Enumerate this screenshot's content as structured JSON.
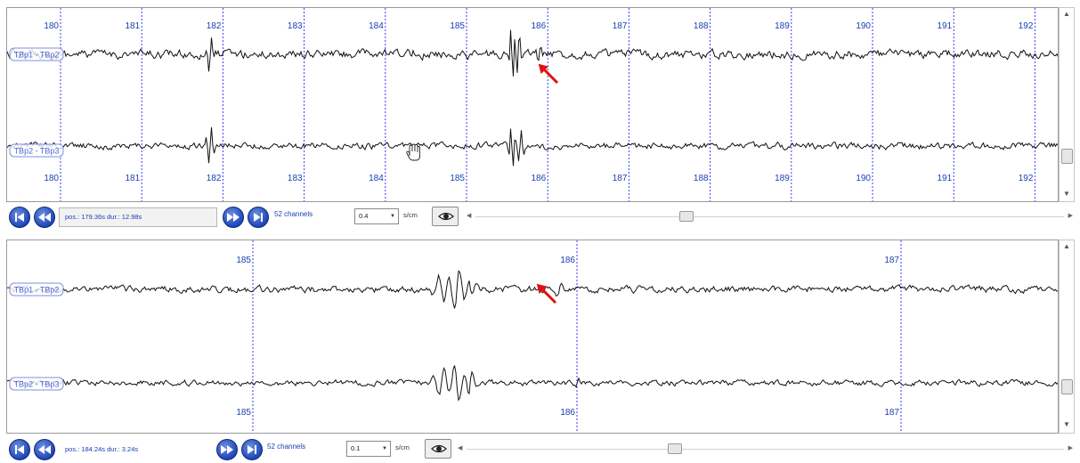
{
  "top_panel": {
    "ticks_top": [
      "180",
      "181",
      "182",
      "183",
      "184",
      "185",
      "186",
      "187",
      "188",
      "189",
      "190",
      "191",
      "192"
    ],
    "ticks_bottom": [
      "180",
      "181",
      "182",
      "183",
      "184",
      "185",
      "186",
      "187",
      "188",
      "189",
      "190",
      "191",
      "192"
    ],
    "channels": [
      "TBp1 - TBp2",
      "TBp2 - TBp3"
    ]
  },
  "top_toolbar": {
    "pos_text": "pos.: 179.36s dur.: 12.98s",
    "channels_label": "52 channels",
    "scale_value": "0.4",
    "scale_unit": "s/cm",
    "scrollbar_position": 0.355
  },
  "bottom_panel": {
    "ticks_top": [
      "185",
      "186",
      "187"
    ],
    "ticks_bottom": [
      "185",
      "186",
      "187"
    ],
    "channels": [
      "TBp1 - TBp2",
      "TBp2 - TBp3"
    ]
  },
  "bottom_toolbar": {
    "pos_text": "pos.: 184.24s dur.: 3.24s",
    "channels_label": "52 channels",
    "scale_value": "0.1",
    "scale_unit": "s/cm",
    "scrollbar_position": 0.345
  },
  "icons": {
    "first": "skip-to-start-icon",
    "rewind": "rewind-icon",
    "forward": "fast-forward-icon",
    "last": "skip-to-end-icon",
    "eye": "eye-icon",
    "cursor": "hand-cursor-icon",
    "marker": "red-arrow-marker"
  },
  "colors": {
    "grid": "#3a3aff",
    "tick_label": "#1a3fb0",
    "trace": "#111111",
    "marker": "#e01010",
    "channel_label": "#4b63d6"
  }
}
